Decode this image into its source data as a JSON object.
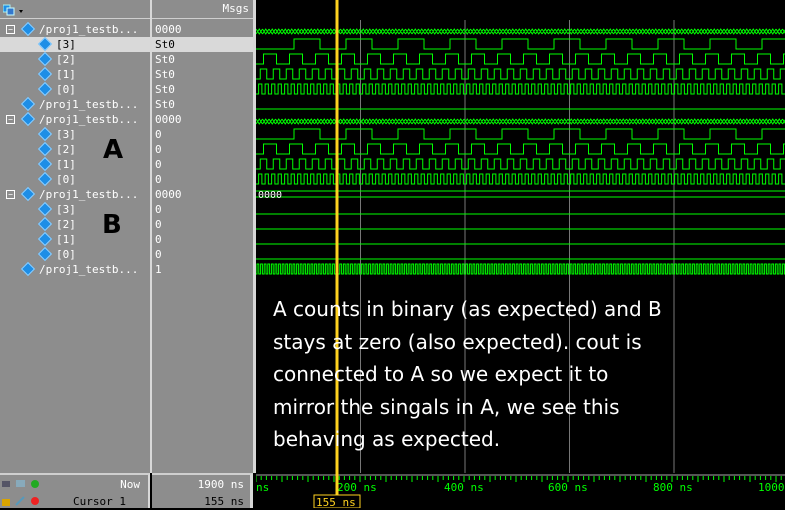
{
  "header": {
    "msgs_label": "Msgs"
  },
  "rows": [
    {
      "name": "/proj1_testb...",
      "value": "0000",
      "kind": "bus",
      "expand": "−"
    },
    {
      "name": "[3]",
      "value": "St0",
      "kind": "bit",
      "selected": true
    },
    {
      "name": "[2]",
      "value": "St0",
      "kind": "bit"
    },
    {
      "name": "[1]",
      "value": "St0",
      "kind": "bit"
    },
    {
      "name": "[0]",
      "value": "St0",
      "kind": "bit"
    },
    {
      "name": "/proj1_testb...",
      "value": "St0",
      "kind": "single"
    },
    {
      "name": "/proj1_testb...",
      "value": "0000",
      "kind": "bus",
      "expand": "−"
    },
    {
      "name": "[3]",
      "value": "0",
      "kind": "bit"
    },
    {
      "name": "[2]",
      "value": "0",
      "kind": "bit"
    },
    {
      "name": "[1]",
      "value": "0",
      "kind": "bit"
    },
    {
      "name": "[0]",
      "value": "0",
      "kind": "bit"
    },
    {
      "name": "/proj1_testb...",
      "value": "0000",
      "kind": "bus",
      "expand": "−"
    },
    {
      "name": "[3]",
      "value": "0",
      "kind": "bit"
    },
    {
      "name": "[2]",
      "value": "0",
      "kind": "bit"
    },
    {
      "name": "[1]",
      "value": "0",
      "kind": "bit"
    },
    {
      "name": "[0]",
      "value": "0",
      "kind": "bit"
    },
    {
      "name": "/proj1_testb...",
      "value": "1",
      "kind": "single"
    }
  ],
  "group_labels": {
    "a": "A",
    "b": "B"
  },
  "wave_b_bus_value": "0000",
  "annotation": "A counts in binary (as expected) and B stays at zero (also expected). cout is connected to A so we expect it to mirror the singals in A, we see this behaving as expected.",
  "bottom": {
    "now_label": "Now",
    "now_value": "1900 ns",
    "cursor_label": "Cursor 1",
    "cursor_value": "155 ns",
    "cursor_flag": "155 ns",
    "ruler_ticks": [
      "ns",
      "200 ns",
      "400 ns",
      "600 ns",
      "800 ns",
      "1000"
    ]
  },
  "colors": {
    "wave": "#00ff00",
    "cursor": "#ffd21f",
    "grid": "#777777",
    "panel": "#8d8d8d"
  }
}
